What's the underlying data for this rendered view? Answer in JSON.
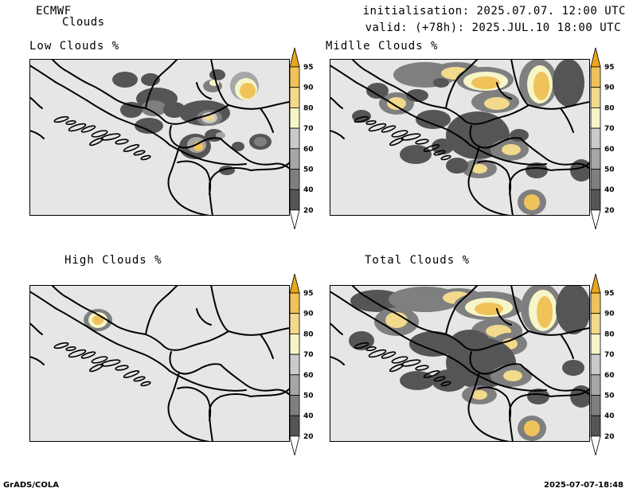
{
  "header": {
    "model": "ECMWF",
    "product": "Clouds",
    "init": "initialisation: 2025.07.07. 12:00 UTC",
    "valid": "valid: (+78h): 2025.JUL.10 18:00 UTC"
  },
  "panels": [
    {
      "id": "low",
      "title": "Low Clouds %"
    },
    {
      "id": "middle",
      "title": "Midlle Clouds %"
    },
    {
      "id": "high",
      "title": "High Clouds %"
    },
    {
      "id": "total",
      "title": "Total Clouds %"
    }
  ],
  "colorbar": {
    "levels": [
      "20",
      "40",
      "50",
      "60",
      "70",
      "80",
      "90",
      "95"
    ],
    "colors": {
      "below20": "#ffffff",
      "20-40": "#555555",
      "40-50": "#7f7f7f",
      "50-60": "#a6a6a6",
      "60-70": "#cacaca",
      "70-80": "#f5f5c8",
      "80-90": "#f2d98c",
      "90-95": "#f0c25a",
      "above95": "#e8a61e"
    }
  },
  "map_colors": {
    "background": "#e6e6e6",
    "border": "#000000"
  },
  "footer": {
    "left": "GrADS/COLA",
    "right": "2025-07-07-18:48"
  }
}
